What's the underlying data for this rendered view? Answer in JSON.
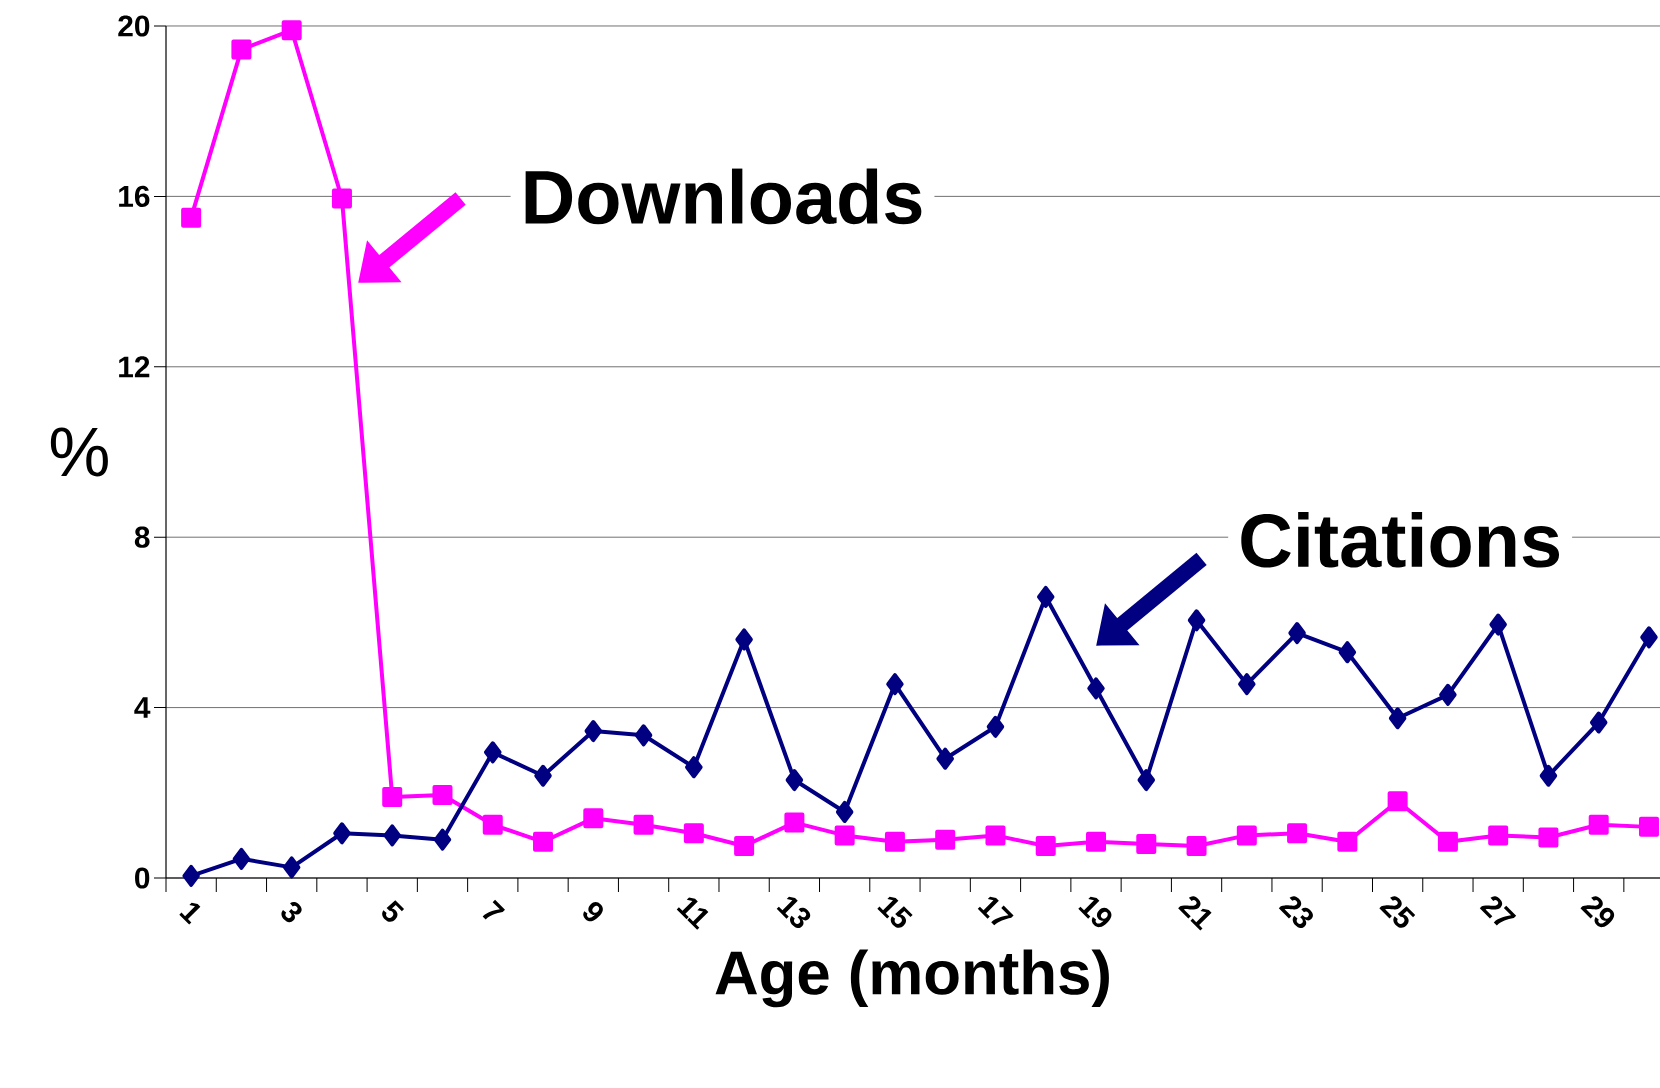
{
  "chart_data": {
    "type": "line",
    "xlabel": "Age (months)",
    "ylabel": "%",
    "categories": [
      "1",
      null,
      "3",
      null,
      "5",
      null,
      "7",
      null,
      "9",
      null,
      "11",
      null,
      "13",
      null,
      "15",
      null,
      "17",
      null,
      "19",
      null,
      "21",
      null,
      "23",
      null,
      "25",
      null,
      "27",
      null,
      "29",
      null
    ],
    "series": [
      {
        "name": "Downloads",
        "color": "#ff00ff",
        "marker": "square",
        "values": [
          15.5,
          19.45,
          19.9,
          15.95,
          1.9,
          1.95,
          1.25,
          0.85,
          1.4,
          1.25,
          1.05,
          0.75,
          1.3,
          1.0,
          0.85,
          0.9,
          1.0,
          0.75,
          0.85,
          0.8,
          0.75,
          1.0,
          1.05,
          0.85,
          1.8,
          0.85,
          1.0,
          0.95,
          1.25,
          1.2
        ]
      },
      {
        "name": "Citations",
        "color": "#000080",
        "marker": "diamond",
        "values": [
          0.05,
          0.45,
          0.25,
          1.05,
          1.0,
          0.9,
          2.95,
          2.4,
          3.45,
          3.35,
          2.6,
          5.6,
          2.3,
          1.55,
          4.55,
          2.8,
          3.55,
          6.6,
          4.45,
          2.3,
          6.05,
          4.55,
          5.75,
          5.3,
          3.75,
          4.3,
          5.95,
          2.4,
          3.65,
          5.65
        ]
      }
    ],
    "ylim": [
      0,
      20
    ],
    "yticks": [
      0,
      4,
      8,
      12,
      16,
      20
    ],
    "grid": "y",
    "legend": "top right",
    "line_style": "solid"
  }
}
